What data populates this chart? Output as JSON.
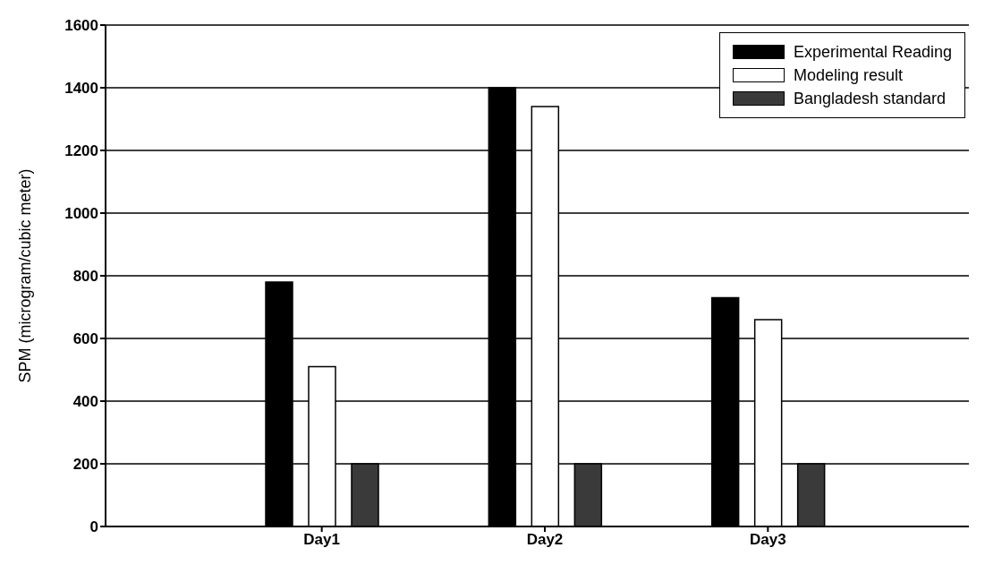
{
  "chart_data": {
    "type": "bar",
    "ylabel": "SPM (microgram/cubic meter)",
    "categories": [
      "Day1",
      "Day2",
      "Day3"
    ],
    "series": [
      {
        "name": "Experimental Reading",
        "color": "#000000",
        "values": [
          780,
          1400,
          730
        ]
      },
      {
        "name": "Modeling result",
        "color": "#ffffff",
        "values": [
          510,
          1340,
          660
        ]
      },
      {
        "name": "Bangladesh standard",
        "color": "#3a3a3a",
        "values": [
          200,
          200,
          200
        ]
      }
    ],
    "ylim": [
      0,
      1600
    ],
    "yticks": [
      0,
      200,
      400,
      600,
      800,
      1000,
      1200,
      1400,
      1600
    ],
    "grid": "y",
    "legend": "top right"
  }
}
